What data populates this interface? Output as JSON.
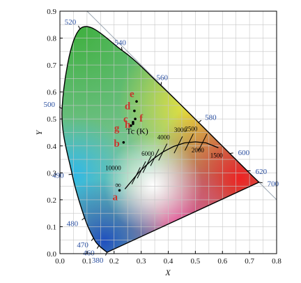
{
  "chart_data": {
    "type": "scatter",
    "title": "",
    "xlabel": "X",
    "ylabel": "Y",
    "xlim": [
      0.0,
      0.8
    ],
    "ylim": [
      0.0,
      0.9
    ],
    "grid": true,
    "x_ticks": [
      "0.0",
      "0.1",
      "0.2",
      "0.3",
      "0.4",
      "0.5",
      "0.6",
      "0.7",
      "0.8"
    ],
    "y_ticks": [
      "0.0",
      "0.1",
      "0.2",
      "0.3",
      "0.4",
      "0.5",
      "0.6",
      "0.7",
      "0.8",
      "0.9"
    ],
    "spectral_locus": [
      {
        "nm": "380",
        "x": 0.174,
        "y": 0.005
      },
      {
        "nm": "460",
        "x": 0.144,
        "y": 0.03
      },
      {
        "nm": "470",
        "x": 0.124,
        "y": 0.058
      },
      {
        "nm": "480",
        "x": 0.091,
        "y": 0.133
      },
      {
        "nm": "490",
        "x": 0.045,
        "y": 0.295
      },
      {
        "nm": "500",
        "x": 0.008,
        "y": 0.538
      },
      {
        "nm": "520",
        "x": 0.074,
        "y": 0.834
      },
      {
        "nm": "540",
        "x": 0.23,
        "y": 0.754
      },
      {
        "nm": "560",
        "x": 0.373,
        "y": 0.624
      },
      {
        "nm": "580",
        "x": 0.512,
        "y": 0.487
      },
      {
        "nm": "600",
        "x": 0.627,
        "y": 0.372
      },
      {
        "nm": "620",
        "x": 0.691,
        "y": 0.308
      },
      {
        "nm": "700",
        "x": 0.735,
        "y": 0.265
      }
    ],
    "planckian_locus_label": "Tc (K)",
    "cct_labels": [
      {
        "label": "10000",
        "x": 0.281,
        "y": 0.289
      },
      {
        "label": "6000",
        "x": 0.322,
        "y": 0.332
      },
      {
        "label": "4000",
        "x": 0.38,
        "y": 0.377
      },
      {
        "label": "3000",
        "x": 0.437,
        "y": 0.404
      },
      {
        "label": "2500",
        "x": 0.477,
        "y": 0.414
      },
      {
        "label": "2000",
        "x": 0.527,
        "y": 0.413
      },
      {
        "label": "1500",
        "x": 0.586,
        "y": 0.393
      }
    ],
    "points": [
      {
        "label": "a",
        "x": 0.22,
        "y": 0.235
      },
      {
        "label": "b",
        "x": 0.235,
        "y": 0.413
      },
      {
        "label": "c",
        "x": 0.27,
        "y": 0.488
      },
      {
        "label": "d",
        "x": 0.275,
        "y": 0.53
      },
      {
        "label": "e",
        "x": 0.283,
        "y": 0.565
      },
      {
        "label": "f",
        "x": 0.278,
        "y": 0.5
      },
      {
        "label": "g",
        "x": 0.262,
        "y": 0.475
      },
      {
        "label": "h",
        "x": 0.27,
        "y": 0.482
      }
    ],
    "infinity_marker": {
      "label": "∞",
      "x": 0.24,
      "y": 0.24
    }
  }
}
